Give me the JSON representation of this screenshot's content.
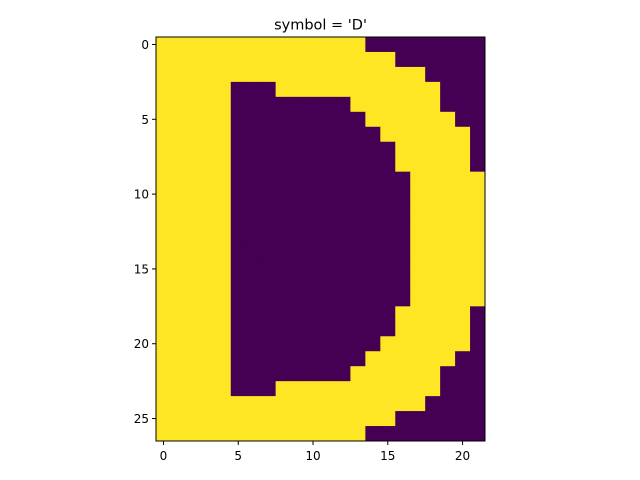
{
  "chart_data": {
    "type": "heatmap",
    "title": "symbol = 'D'",
    "xlabel": "",
    "ylabel": "",
    "rows": 27,
    "cols": 22,
    "xlim": [
      -0.5,
      21.5
    ],
    "ylim": [
      26.5,
      -0.5
    ],
    "xticks": [
      0,
      5,
      10,
      15,
      20
    ],
    "yticks": [
      0,
      5,
      10,
      15,
      20,
      25
    ],
    "colormap": "viridis",
    "colors": {
      "on": "#fde725",
      "off": "#440154"
    },
    "grid": false,
    "legend": "none",
    "matrix": [
      [
        1,
        1,
        1,
        1,
        1,
        1,
        1,
        1,
        1,
        1,
        1,
        1,
        1,
        1,
        0,
        0,
        0,
        0,
        0,
        0,
        0,
        0
      ],
      [
        1,
        1,
        1,
        1,
        1,
        1,
        1,
        1,
        1,
        1,
        1,
        1,
        1,
        1,
        1,
        1,
        0,
        0,
        0,
        0,
        0,
        0
      ],
      [
        1,
        1,
        1,
        1,
        1,
        1,
        1,
        1,
        1,
        1,
        1,
        1,
        1,
        1,
        1,
        1,
        1,
        1,
        0,
        0,
        0,
        0
      ],
      [
        1,
        1,
        1,
        1,
        1,
        0,
        0,
        0,
        1,
        1,
        1,
        1,
        1,
        1,
        1,
        1,
        1,
        1,
        1,
        0,
        0,
        0
      ],
      [
        1,
        1,
        1,
        1,
        1,
        0,
        0,
        0,
        0,
        0,
        0,
        0,
        0,
        1,
        1,
        1,
        1,
        1,
        1,
        0,
        0,
        0
      ],
      [
        1,
        1,
        1,
        1,
        1,
        0,
        0,
        0,
        0,
        0,
        0,
        0,
        0,
        0,
        1,
        1,
        1,
        1,
        1,
        1,
        0,
        0
      ],
      [
        1,
        1,
        1,
        1,
        1,
        0,
        0,
        0,
        0,
        0,
        0,
        0,
        0,
        0,
        0,
        1,
        1,
        1,
        1,
        1,
        1,
        0
      ],
      [
        1,
        1,
        1,
        1,
        1,
        0,
        0,
        0,
        0,
        0,
        0,
        0,
        0,
        0,
        0,
        0,
        1,
        1,
        1,
        1,
        1,
        0
      ],
      [
        1,
        1,
        1,
        1,
        1,
        0,
        0,
        0,
        0,
        0,
        0,
        0,
        0,
        0,
        0,
        0,
        1,
        1,
        1,
        1,
        1,
        0
      ],
      [
        1,
        1,
        1,
        1,
        1,
        0,
        0,
        0,
        0,
        0,
        0,
        0,
        0,
        0,
        0,
        0,
        0,
        1,
        1,
        1,
        1,
        1
      ],
      [
        1,
        1,
        1,
        1,
        1,
        0,
        0,
        0,
        0,
        0,
        0,
        0,
        0,
        0,
        0,
        0,
        0,
        1,
        1,
        1,
        1,
        1
      ],
      [
        1,
        1,
        1,
        1,
        1,
        0,
        0,
        0,
        0,
        0,
        0,
        0,
        0,
        0,
        0,
        0,
        0,
        1,
        1,
        1,
        1,
        1
      ],
      [
        1,
        1,
        1,
        1,
        1,
        0,
        0,
        0,
        0,
        0,
        0,
        0,
        0,
        0,
        0,
        0,
        0,
        1,
        1,
        1,
        1,
        1
      ],
      [
        1,
        1,
        1,
        1,
        1,
        0,
        0,
        0,
        0,
        0,
        0,
        0,
        0,
        0,
        0,
        0,
        0,
        1,
        1,
        1,
        1,
        1
      ],
      [
        1,
        1,
        1,
        1,
        1,
        0,
        0,
        0,
        0,
        0,
        0,
        0,
        0,
        0,
        0,
        0,
        0,
        1,
        1,
        1,
        1,
        1
      ],
      [
        1,
        1,
        1,
        1,
        1,
        0,
        0,
        0,
        0,
        0,
        0,
        0,
        0,
        0,
        0,
        0,
        0,
        1,
        1,
        1,
        1,
        1
      ],
      [
        1,
        1,
        1,
        1,
        1,
        0,
        0,
        0,
        0,
        0,
        0,
        0,
        0,
        0,
        0,
        0,
        0,
        1,
        1,
        1,
        1,
        1
      ],
      [
        1,
        1,
        1,
        1,
        1,
        0,
        0,
        0,
        0,
        0,
        0,
        0,
        0,
        0,
        0,
        0,
        0,
        1,
        1,
        1,
        1,
        1
      ],
      [
        1,
        1,
        1,
        1,
        1,
        0,
        0,
        0,
        0,
        0,
        0,
        0,
        0,
        0,
        0,
        0,
        1,
        1,
        1,
        1,
        1,
        0
      ],
      [
        1,
        1,
        1,
        1,
        1,
        0,
        0,
        0,
        0,
        0,
        0,
        0,
        0,
        0,
        0,
        0,
        1,
        1,
        1,
        1,
        1,
        0
      ],
      [
        1,
        1,
        1,
        1,
        1,
        0,
        0,
        0,
        0,
        0,
        0,
        0,
        0,
        0,
        0,
        1,
        1,
        1,
        1,
        1,
        1,
        0
      ],
      [
        1,
        1,
        1,
        1,
        1,
        0,
        0,
        0,
        0,
        0,
        0,
        0,
        0,
        0,
        1,
        1,
        1,
        1,
        1,
        1,
        0,
        0
      ],
      [
        1,
        1,
        1,
        1,
        1,
        0,
        0,
        0,
        0,
        0,
        0,
        0,
        0,
        1,
        1,
        1,
        1,
        1,
        1,
        0,
        0,
        0
      ],
      [
        1,
        1,
        1,
        1,
        1,
        0,
        0,
        0,
        1,
        1,
        1,
        1,
        1,
        1,
        1,
        1,
        1,
        1,
        1,
        0,
        0,
        0
      ],
      [
        1,
        1,
        1,
        1,
        1,
        1,
        1,
        1,
        1,
        1,
        1,
        1,
        1,
        1,
        1,
        1,
        1,
        1,
        0,
        0,
        0,
        0
      ],
      [
        1,
        1,
        1,
        1,
        1,
        1,
        1,
        1,
        1,
        1,
        1,
        1,
        1,
        1,
        1,
        1,
        0,
        0,
        0,
        0,
        0,
        0
      ],
      [
        1,
        1,
        1,
        1,
        1,
        1,
        1,
        1,
        1,
        1,
        1,
        1,
        1,
        1,
        0,
        0,
        0,
        0,
        0,
        0,
        0,
        0
      ]
    ]
  }
}
